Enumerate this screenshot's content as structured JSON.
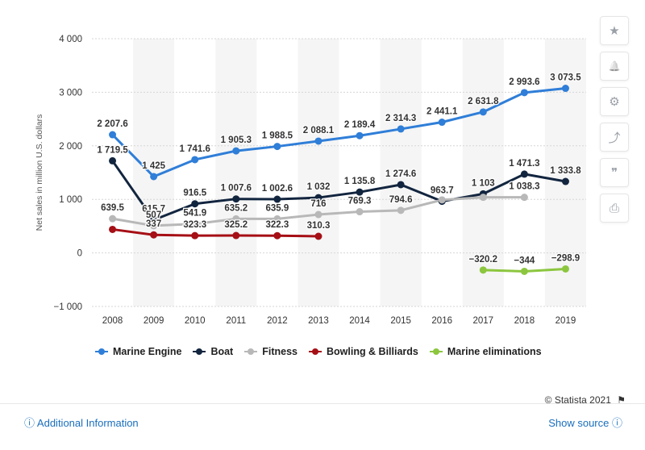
{
  "chart_data": {
    "type": "line",
    "ylabel": "Net sales in million U.S. dollars",
    "xlabel": "",
    "ylim": [
      -1000,
      4000
    ],
    "yticks": [
      -1000,
      0,
      1000,
      2000,
      3000,
      4000
    ],
    "ytick_labels": [
      "−1 000",
      "0",
      "1 000",
      "2 000",
      "3 000",
      "4 000"
    ],
    "categories": [
      "2008",
      "2009",
      "2010",
      "2011",
      "2012",
      "2013",
      "2014",
      "2015",
      "2016",
      "2017",
      "2018",
      "2019"
    ],
    "grid": "horizontal dotted, alternating column bands",
    "legend_position": "bottom-left",
    "series": [
      {
        "name": "Marine Engine",
        "color": "#2f7ed8",
        "values": [
          2207.6,
          1425,
          1741.6,
          1905.3,
          1988.5,
          2088.1,
          2189.4,
          2314.3,
          2441.1,
          2631.8,
          2993.6,
          3073.5
        ],
        "labels": [
          "2 207.6",
          "1 425",
          "1 741.6",
          "1 905.3",
          "1 988.5",
          "2 088.1",
          "2 189.4",
          "2 314.3",
          "2 441.1",
          "2 631.8",
          "2 993.6",
          "3 073.5"
        ]
      },
      {
        "name": "Boat",
        "color": "#12253f",
        "values": [
          1719.5,
          615.7,
          916.5,
          1007.6,
          1002.6,
          1032,
          1135.8,
          1274.6,
          963.7,
          1103,
          1471.3,
          1333.8
        ],
        "labels": [
          "1 719.5",
          "615.7",
          "916.5",
          "1 007.6",
          "1 002.6",
          "1 032",
          "1 135.8",
          "1 274.6",
          "963.7",
          "1 103",
          "1 471.3",
          "1 333.8"
        ]
      },
      {
        "name": "Fitness",
        "color": "#b8b8b8",
        "values": [
          639.5,
          507,
          541.9,
          635.2,
          635.9,
          716,
          769.3,
          794.6,
          990,
          1038.3,
          1038.3,
          null
        ],
        "labels": [
          "639.5",
          "507",
          "541.9",
          "635.2",
          "635.9",
          "716",
          "769.3",
          "794.6",
          "",
          "",
          "1 038.3",
          ""
        ]
      },
      {
        "name": "Bowling & Billiards",
        "color": "#a50f15",
        "values": [
          439,
          337,
          323.3,
          325.2,
          322.3,
          310.3,
          null,
          null,
          null,
          null,
          null,
          null
        ],
        "labels": [
          "",
          "337",
          "323.3",
          "325.2",
          "322.3",
          "310.3",
          "",
          "",
          "",
          "",
          "",
          ""
        ]
      },
      {
        "name": "Marine eliminations",
        "color": "#8cc63f",
        "values": [
          null,
          null,
          null,
          null,
          null,
          null,
          null,
          null,
          null,
          -320.2,
          -344,
          -298.9
        ],
        "labels": [
          "",
          "",
          "",
          "",
          "",
          "",
          "",
          "",
          "",
          "−320.2",
          "−344",
          "−298.9"
        ]
      }
    ]
  },
  "credit": "© Statista 2021",
  "footer": {
    "info_label": "Additional Information",
    "source_label": "Show source"
  },
  "toolbar": [
    {
      "icon": "star-icon",
      "glyph": "★"
    },
    {
      "icon": "bell-icon",
      "glyph": "🔔"
    },
    {
      "icon": "gear-icon",
      "glyph": "⚙"
    },
    {
      "icon": "share-icon",
      "glyph": "⤴"
    },
    {
      "icon": "quote-icon",
      "glyph": "❞"
    },
    {
      "icon": "print-icon",
      "glyph": "⎙"
    }
  ]
}
